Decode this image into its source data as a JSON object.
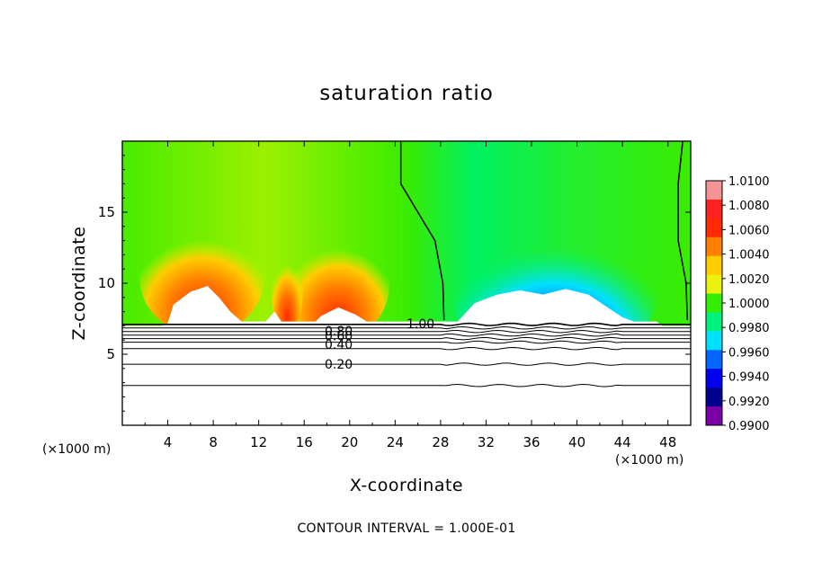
{
  "chart_data": {
    "type": "heatmap",
    "title": "saturation ratio",
    "xlabel": "X-coordinate",
    "ylabel": "Z-coordinate",
    "x_unit_left": "(×1000 m)",
    "x_unit_right": "(×1000 m)",
    "xlim": [
      0,
      50
    ],
    "ylim": [
      0,
      20
    ],
    "x_ticks": [
      "4",
      "8",
      "12",
      "16",
      "20",
      "24",
      "28",
      "32",
      "36",
      "40",
      "44",
      "48"
    ],
    "x_tick_values": [
      4,
      8,
      12,
      16,
      20,
      24,
      28,
      32,
      36,
      40,
      44,
      48
    ],
    "y_ticks": [
      "5",
      "10",
      "15"
    ],
    "y_tick_values": [
      5,
      10,
      15
    ],
    "colorbar": {
      "labels": [
        "1.0100",
        "1.0080",
        "1.0060",
        "1.0040",
        "1.0020",
        "1.0000",
        "0.9980",
        "0.9960",
        "0.9940",
        "0.9920",
        "0.9900"
      ],
      "values": [
        1.01,
        1.008,
        1.006,
        1.004,
        1.002,
        1.0,
        0.998,
        0.996,
        0.994,
        0.992,
        0.99
      ],
      "colors": [
        "#f39595",
        "#ff2222",
        "#ff2a00",
        "#ff7f00",
        "#ffcc00",
        "#ecf20f",
        "#33ee00",
        "#00f27c",
        "#00e0ff",
        "#0066ff",
        "#0000ee",
        "#00008f",
        "#7a00a8"
      ]
    },
    "contour_labels": [
      {
        "text": "1.00",
        "x": 25.0,
        "z": 7.15
      },
      {
        "text": "0.80",
        "x": 17.8,
        "z": 6.65
      },
      {
        "text": "0.60",
        "x": 17.8,
        "z": 6.3
      },
      {
        "text": "0.40",
        "x": 17.8,
        "z": 5.7
      },
      {
        "text": "0.20",
        "x": 17.8,
        "z": 4.3
      }
    ],
    "contour_levels_z": [
      7.1,
      6.85,
      6.6,
      6.35,
      6.1,
      5.85,
      5.4,
      4.3,
      2.8
    ],
    "saturation_line_x": [
      [
        24.5,
        20.0
      ],
      [
        24.5,
        17.0
      ],
      [
        27.5,
        13.0
      ],
      [
        28.2,
        10.0
      ],
      [
        28.3,
        7.4
      ]
    ],
    "saturation_line_right_x": [
      [
        49.3,
        20.0
      ],
      [
        48.9,
        17.0
      ],
      [
        48.9,
        13.0
      ],
      [
        49.6,
        10.0
      ],
      [
        49.7,
        7.4
      ]
    ],
    "contour_interval_text": "CONTOUR INTERVAL = 1.000E-01"
  }
}
